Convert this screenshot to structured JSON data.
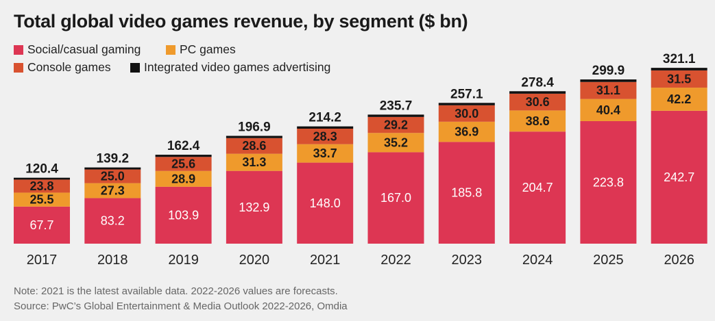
{
  "colors": {
    "social_casual": "#dd3653",
    "pc": "#ef9a2c",
    "console": "#d85230",
    "advertising": "#111111",
    "background": "#f0f0f0"
  },
  "chart_data": {
    "type": "bar",
    "stacked": true,
    "title": "Total global video games revenue, by segment ($ bn)",
    "categories": [
      "2017",
      "2018",
      "2019",
      "2020",
      "2021",
      "2022",
      "2023",
      "2024",
      "2025",
      "2026"
    ],
    "series": [
      {
        "name": "Social/casual gaming",
        "key": "social_casual",
        "values": [
          67.7,
          83.2,
          103.9,
          132.9,
          148.0,
          167.0,
          185.8,
          204.7,
          223.8,
          242.7
        ]
      },
      {
        "name": "PC games",
        "key": "pc",
        "values": [
          25.5,
          27.3,
          28.9,
          31.3,
          33.7,
          35.2,
          36.9,
          38.6,
          40.4,
          42.2
        ]
      },
      {
        "name": "Console games",
        "key": "console",
        "values": [
          23.8,
          25.0,
          25.6,
          28.6,
          28.3,
          29.2,
          30.0,
          30.6,
          31.1,
          31.5
        ]
      },
      {
        "name": "Integrated video games advertising",
        "key": "advertising",
        "values": [
          3.4,
          3.7,
          4.0,
          4.1,
          4.2,
          4.3,
          4.4,
          4.5,
          4.6,
          4.7
        ]
      }
    ],
    "totals": [
      "120.4",
      "139.2",
      "162.4",
      "196.9",
      "214.2",
      "235.7",
      "257.1",
      "278.4",
      "299.9",
      "321.1"
    ],
    "segment_labels": {
      "social_casual": [
        "67.7",
        "83.2",
        "103.9",
        "132.9",
        "148.0",
        "167.0",
        "185.8",
        "204.7",
        "223.8",
        "242.7"
      ],
      "pc": [
        "25.5",
        "27.3",
        "28.9",
        "31.3",
        "33.7",
        "35.2",
        "36.9",
        "38.6",
        "40.4",
        "42.2"
      ],
      "console": [
        "23.8",
        "25.0",
        "25.6",
        "28.6",
        "28.3",
        "29.2",
        "30.0",
        "30.6",
        "31.1",
        "31.5"
      ]
    },
    "xlabel": "",
    "ylabel": "",
    "ylim": [
      0,
      330
    ],
    "grid": false,
    "legend": "top-left"
  },
  "legend": [
    {
      "label": "Social/casual gaming",
      "color": "#dd3653"
    },
    {
      "label": "PC games",
      "color": "#ef9a2c"
    },
    {
      "label": "Console games",
      "color": "#d85230"
    },
    {
      "label": "Integrated video games advertising",
      "color": "#111111"
    }
  ],
  "notes": {
    "note": "Note: 2021 is the latest available data. 2022-2026 values are forecasts.",
    "source": "Source: PwC’s Global Entertainment & Media Outlook 2022-2026, Omdia"
  }
}
